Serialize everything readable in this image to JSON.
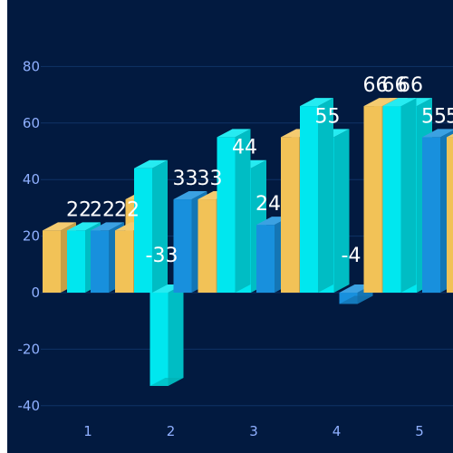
{
  "colors": {
    "background": "#021a40",
    "page_margin": "#ffffff",
    "grid": "#0f3366",
    "axis_text": "#8fb0ff",
    "label_text": "#ffffff"
  },
  "chart_data": {
    "type": "bar",
    "variant": "3d-pseudo-bars",
    "categories": [
      "1",
      "2",
      "3",
      "4",
      "5"
    ],
    "ylim": [
      -40,
      90
    ],
    "yticks": [
      "80",
      "60",
      "40",
      "20",
      "0",
      "-20",
      "-40"
    ],
    "ytick_values": [
      80,
      60,
      40,
      20,
      0,
      -20,
      -40
    ],
    "grid": true,
    "legend": "none",
    "series": [
      {
        "color": "#f2c257",
        "values": [
          22,
          33,
          24,
          55,
          66
        ],
        "value_labels": [
          "",
          "",
          "",
          "",
          ""
        ]
      },
      {
        "color": "#00e7ef",
        "values": [
          22,
          -33,
          44,
          55,
          66
        ],
        "value_labels": [
          "22",
          "-33",
          "44",
          "55",
          "66"
        ]
      },
      {
        "color": "#1890dd",
        "values": [
          22,
          33,
          24,
          -4,
          55
        ],
        "value_labels": [
          "22",
          "33",
          "24",
          "-4",
          "55"
        ]
      },
      {
        "color": "#f2c257",
        "values": [
          22,
          33,
          55,
          66,
          55
        ],
        "value_labels": [
          "22",
          "33",
          "",
          "66",
          "55"
        ]
      },
      {
        "color": "#00e7ef",
        "values": [
          44,
          55,
          66,
          66,
          66
        ],
        "value_labels": [
          "",
          "",
          "",
          "66",
          ""
        ]
      }
    ]
  }
}
